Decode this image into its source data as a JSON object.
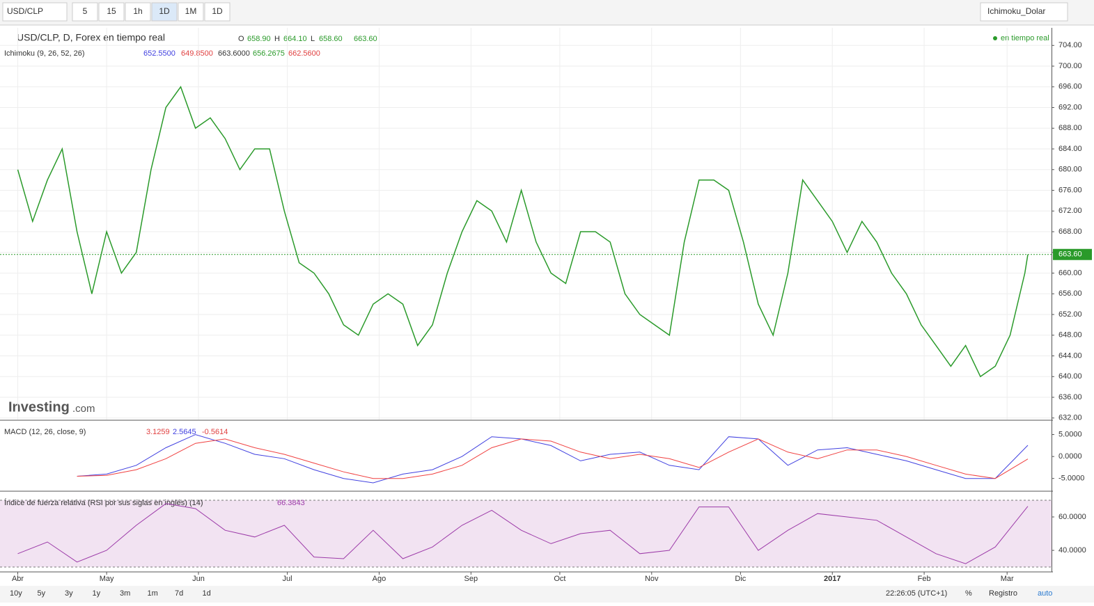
{
  "toolbar": {
    "symbol": "USD/CLP",
    "intervals": [
      "5",
      "15",
      "1h",
      "1D",
      "1M",
      "1D"
    ],
    "layout": "Ichimoku_Dolar"
  },
  "header": {
    "title": "USD/CLP, D, Forex en tiempo real",
    "o_label": "O",
    "o": "658.90",
    "h_label": "H",
    "h": "664.10",
    "l_label": "L",
    "l": "658.60",
    "c": "663.60",
    "live": "en tiempo real",
    "indicator": "Ichimoku (9, 26, 52, 26)",
    "indicator_values": [
      "652.5500",
      "649.8500",
      "663.6000",
      "656.2675",
      "662.5600"
    ],
    "watermark": "Investing",
    "watermark_suffix": ".com"
  },
  "chart_data": [
    {
      "type": "line",
      "title": "USD/CLP",
      "xlim": [
        -6,
        349
      ],
      "ylim": [
        631.7,
        707.4
      ],
      "xticks": [
        {
          "value": 0,
          "label": "Abr"
        },
        {
          "value": 30,
          "label": "May"
        },
        {
          "value": 61,
          "label": "Jun"
        },
        {
          "value": 91,
          "label": "Jul"
        },
        {
          "value": 122,
          "label": "Ago"
        },
        {
          "value": 153,
          "label": "Sep"
        },
        {
          "value": 183,
          "label": "Oct"
        },
        {
          "value": 214,
          "label": "Nov"
        },
        {
          "value": 244,
          "label": "Dic"
        },
        {
          "value": 275,
          "label": "2017"
        },
        {
          "value": 306,
          "label": "Feb"
        },
        {
          "value": 334,
          "label": "Mar"
        }
      ],
      "yticks": [
        {
          "value": 632,
          "label": "632.00"
        },
        {
          "value": 636,
          "label": "636.00"
        },
        {
          "value": 640,
          "label": "640.00"
        },
        {
          "value": 644,
          "label": "644.00"
        },
        {
          "value": 648,
          "label": "648.00"
        },
        {
          "value": 652,
          "label": "652.00"
        },
        {
          "value": 656,
          "label": "656.00"
        },
        {
          "value": 660,
          "label": "660.00"
        },
        {
          "value": 664,
          "label": "664.00"
        },
        {
          "value": 668,
          "label": "668.00"
        },
        {
          "value": 672,
          "label": "672.00"
        },
        {
          "value": 676,
          "label": "676.00"
        },
        {
          "value": 680,
          "label": "680.00"
        },
        {
          "value": 684,
          "label": "684.00"
        },
        {
          "value": 688,
          "label": "688.00"
        },
        {
          "value": 692,
          "label": "692.00"
        },
        {
          "value": 696,
          "label": "696.00"
        },
        {
          "value": 700,
          "label": "700.00"
        },
        {
          "value": 704,
          "label": "704.00"
        }
      ],
      "last": {
        "value": 663.6,
        "label": "663.60"
      },
      "grid": true,
      "x": [
        0,
        5,
        10,
        15,
        20,
        25,
        30,
        35,
        40,
        45,
        50,
        55,
        60,
        65,
        70,
        75,
        80,
        85,
        90,
        95,
        100,
        105,
        110,
        115,
        120,
        125,
        130,
        135,
        140,
        145,
        150,
        155,
        160,
        165,
        170,
        175,
        180,
        185,
        190,
        195,
        200,
        205,
        210,
        215,
        220,
        225,
        230,
        235,
        240,
        245,
        250,
        255,
        260,
        265,
        270,
        275,
        280,
        285,
        290,
        295,
        300,
        305,
        310,
        315,
        320,
        325,
        330,
        335,
        340,
        341
      ],
      "series": [
        {
          "name": "USD/CLP",
          "color": "#2a9a2a",
          "values": [
            680,
            670,
            678,
            684,
            668,
            656,
            668,
            660,
            664,
            680,
            692,
            696,
            688,
            690,
            686,
            680,
            684,
            684,
            672,
            662,
            660,
            656,
            650,
            648,
            654,
            656,
            654,
            646,
            650,
            660,
            668,
            674,
            672,
            666,
            676,
            666,
            660,
            658,
            668,
            668,
            666,
            656,
            652,
            650,
            648,
            666,
            678,
            678,
            676,
            666,
            654,
            648,
            660,
            678,
            674,
            670,
            664,
            670,
            666,
            660,
            656,
            650,
            646,
            642,
            646,
            640,
            642,
            648,
            660,
            663.6
          ]
        }
      ]
    },
    {
      "type": "line",
      "title": "MACD (12, 26, close, 9)",
      "legend_values": [
        "3.1259",
        "2.5645",
        "-0.5614"
      ],
      "xlim": [
        -6,
        349
      ],
      "ylim": [
        -7.9,
        8.1
      ],
      "yticks": [
        {
          "value": 5,
          "label": "5.0000"
        },
        {
          "value": 0,
          "label": "0.0000"
        },
        {
          "value": -5,
          "label": "-5.0000"
        }
      ],
      "x": [
        20,
        30,
        40,
        50,
        60,
        70,
        80,
        90,
        100,
        110,
        120,
        130,
        140,
        150,
        160,
        170,
        180,
        190,
        200,
        210,
        220,
        230,
        240,
        250,
        260,
        270,
        280,
        290,
        300,
        310,
        320,
        330,
        341
      ],
      "series": [
        {
          "name": "MACD",
          "color": "#4040e0",
          "values": [
            -4.5,
            -4,
            -2,
            2,
            5,
            3,
            0.5,
            -0.5,
            -3,
            -5,
            -6,
            -4,
            -3,
            0,
            4.5,
            4,
            2.5,
            -1,
            0.5,
            1,
            -2,
            -3,
            4.5,
            4,
            -2,
            1.5,
            2,
            0.5,
            -1,
            -3,
            -5,
            -5,
            2.56
          ]
        },
        {
          "name": "Signal",
          "color": "#f04040",
          "values": [
            -4.5,
            -4.3,
            -3,
            -0.5,
            3,
            4,
            2,
            0.5,
            -1.5,
            -3.5,
            -5,
            -5,
            -4,
            -2,
            2,
            4,
            3.5,
            1,
            -0.5,
            0.5,
            -0.5,
            -2.5,
            1,
            4,
            1,
            -0.5,
            1.5,
            1.5,
            0,
            -2,
            -4,
            -5,
            -0.56
          ]
        }
      ]
    },
    {
      "type": "line",
      "title": "Índice de fuerza relativa (RSI por sus siglas en inglés) (14)",
      "legend_value": "66.3843",
      "xlim": [
        -6,
        349
      ],
      "ylim": [
        27.1,
        75
      ],
      "yticks": [
        {
          "value": 60,
          "label": "60.0000"
        },
        {
          "value": 40,
          "label": "40.0000"
        }
      ],
      "x": [
        0,
        10,
        20,
        30,
        40,
        50,
        60,
        70,
        80,
        90,
        100,
        110,
        120,
        130,
        140,
        150,
        160,
        170,
        180,
        190,
        200,
        210,
        220,
        230,
        240,
        250,
        260,
        270,
        280,
        290,
        300,
        310,
        320,
        330,
        341
      ],
      "series": [
        {
          "name": "RSI",
          "color": "#9c3aa8",
          "values": [
            38,
            45,
            33,
            40,
            55,
            68,
            65,
            52,
            48,
            55,
            36,
            35,
            52,
            35,
            42,
            55,
            64,
            52,
            44,
            50,
            52,
            38,
            40,
            66,
            66,
            40,
            52,
            62,
            60,
            58,
            48,
            38,
            32,
            42,
            66.38
          ]
        }
      ]
    }
  ],
  "footer": {
    "ranges": [
      "10y",
      "5y",
      "3y",
      "1y",
      "3m",
      "1m",
      "7d",
      "1d"
    ],
    "time": "22:26:05 (UTC+1)",
    "percent": "%",
    "log": "Registro",
    "auto": "auto"
  }
}
